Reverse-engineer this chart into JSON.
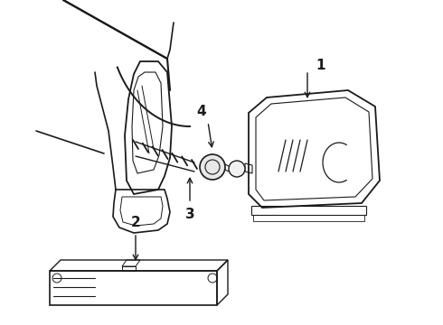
{
  "background_color": "#ffffff",
  "line_color": "#1a1a1a",
  "fig_width": 4.9,
  "fig_height": 3.6,
  "dpi": 100,
  "label_fontsize": 10
}
